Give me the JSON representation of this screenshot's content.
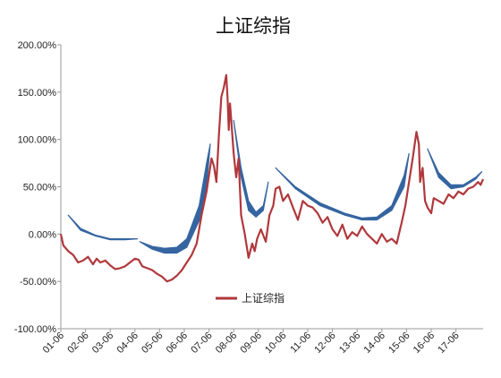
{
  "chart_data": {
    "type": "line",
    "title": "上证综指",
    "xlabel": "",
    "ylabel": "",
    "ylim": [
      -1.0,
      2.0
    ],
    "yticks": [
      "-100.00%",
      "-50.00%",
      "0.00%",
      "50.00%",
      "100.00%",
      "150.00%",
      "200.00%"
    ],
    "ytick_values": [
      -1.0,
      -0.5,
      0.0,
      0.5,
      1.0,
      1.5,
      2.0
    ],
    "xticks": [
      "01-06",
      "02-06",
      "03-06",
      "04-06",
      "05-06",
      "06-06",
      "07-06",
      "08-06",
      "09-06",
      "10-06",
      "11-06",
      "12-06",
      "13-06",
      "14-06",
      "15-06",
      "16-06",
      "17-06"
    ],
    "x_range": [
      2001.0,
      2018.1
    ],
    "legend": {
      "position": "bottom-center",
      "entries": [
        "上证综指"
      ]
    },
    "grid": false,
    "series": [
      {
        "name": "上证综指",
        "color": "#b0383c",
        "x": [
          2001.0,
          2001.1,
          2001.3,
          2001.5,
          2001.7,
          2001.9,
          2002.1,
          2002.3,
          2002.45,
          2002.6,
          2002.8,
          2003.0,
          2003.2,
          2003.4,
          2003.6,
          2003.8,
          2004.0,
          2004.15,
          2004.3,
          2004.5,
          2004.7,
          2004.9,
          2005.1,
          2005.3,
          2005.5,
          2005.7,
          2005.9,
          2006.1,
          2006.3,
          2006.5,
          2006.7,
          2006.9,
          2007.1,
          2007.2,
          2007.3,
          2007.4,
          2007.5,
          2007.6,
          2007.7,
          2007.75,
          2007.8,
          2007.85,
          2007.9,
          2008.0,
          2008.1,
          2008.2,
          2008.3,
          2008.45,
          2008.6,
          2008.75,
          2008.85,
          2008.95,
          2009.1,
          2009.3,
          2009.45,
          2009.6,
          2009.7,
          2009.85,
          2010.0,
          2010.2,
          2010.4,
          2010.6,
          2010.8,
          2011.0,
          2011.2,
          2011.4,
          2011.6,
          2011.8,
          2012.0,
          2012.2,
          2012.4,
          2012.6,
          2012.8,
          2013.0,
          2013.2,
          2013.4,
          2013.6,
          2013.8,
          2014.0,
          2014.2,
          2014.4,
          2014.6,
          2014.8,
          2014.95,
          2015.1,
          2015.25,
          2015.4,
          2015.5,
          2015.55,
          2015.65,
          2015.75,
          2015.85,
          2016.0,
          2016.1,
          2016.3,
          2016.5,
          2016.7,
          2016.9,
          2017.1,
          2017.3,
          2017.5,
          2017.7,
          2017.9,
          2018.0,
          2018.1
        ],
        "values": [
          0.0,
          -0.12,
          -0.18,
          -0.22,
          -0.3,
          -0.28,
          -0.24,
          -0.32,
          -0.26,
          -0.3,
          -0.28,
          -0.33,
          -0.37,
          -0.36,
          -0.34,
          -0.3,
          -0.26,
          -0.27,
          -0.34,
          -0.36,
          -0.38,
          -0.42,
          -0.45,
          -0.5,
          -0.48,
          -0.44,
          -0.38,
          -0.3,
          -0.22,
          -0.1,
          0.2,
          0.45,
          0.8,
          0.72,
          0.55,
          1.05,
          1.45,
          1.55,
          1.68,
          1.45,
          1.1,
          1.38,
          1.2,
          0.85,
          0.6,
          0.8,
          0.2,
          0.0,
          -0.25,
          -0.1,
          -0.18,
          -0.05,
          0.05,
          -0.08,
          0.2,
          0.3,
          0.48,
          0.5,
          0.35,
          0.42,
          0.28,
          0.15,
          0.35,
          0.3,
          0.28,
          0.22,
          0.12,
          0.18,
          0.05,
          -0.02,
          0.1,
          -0.05,
          0.02,
          -0.02,
          0.08,
          0.0,
          -0.05,
          -0.1,
          0.0,
          -0.08,
          -0.05,
          -0.1,
          0.12,
          0.3,
          0.55,
          0.8,
          1.08,
          0.95,
          0.55,
          0.7,
          0.35,
          0.28,
          0.22,
          0.38,
          0.35,
          0.32,
          0.42,
          0.38,
          0.45,
          0.42,
          0.48,
          0.5,
          0.55,
          0.52,
          0.58
        ]
      }
    ],
    "overlays": [
      {
        "color": "#3565a0",
        "x": [
          2001.3,
          2001.8,
          2002.4,
          2003.0,
          2003.6,
          2004.1
        ],
        "upper": [
          0.2,
          0.06,
          -0.01,
          -0.05,
          -0.05,
          -0.05
        ],
        "lower": [
          0.2,
          0.04,
          -0.02,
          -0.06,
          -0.06,
          -0.05
        ]
      },
      {
        "color": "#3565a0",
        "x": [
          2004.2,
          2004.7,
          2005.2,
          2005.7,
          2006.1,
          2006.6,
          2006.9,
          2007.05
        ],
        "upper": [
          -0.08,
          -0.13,
          -0.15,
          -0.14,
          -0.05,
          0.3,
          0.75,
          0.95
        ],
        "lower": [
          -0.08,
          -0.16,
          -0.2,
          -0.2,
          -0.14,
          0.14,
          0.5,
          0.95
        ]
      },
      {
        "color": "#3565a0",
        "x": [
          2008.0,
          2008.3,
          2008.6,
          2008.9,
          2009.2,
          2009.4
        ],
        "upper": [
          1.2,
          0.7,
          0.35,
          0.23,
          0.3,
          0.55
        ],
        "lower": [
          1.2,
          0.6,
          0.25,
          0.18,
          0.25,
          0.55
        ]
      },
      {
        "color": "#3565a0",
        "x": [
          2009.7,
          2010.5,
          2011.5,
          2012.5,
          2013.2,
          2013.8,
          2014.4,
          2014.9,
          2015.1
        ],
        "upper": [
          0.7,
          0.5,
          0.33,
          0.22,
          0.17,
          0.18,
          0.3,
          0.62,
          0.85
        ],
        "lower": [
          0.7,
          0.48,
          0.3,
          0.2,
          0.15,
          0.15,
          0.25,
          0.5,
          0.85
        ]
      },
      {
        "color": "#3565a0",
        "x": [
          2015.85,
          2016.3,
          2016.8,
          2017.3,
          2017.8,
          2018.05
        ],
        "upper": [
          0.9,
          0.65,
          0.52,
          0.52,
          0.6,
          0.66
        ],
        "lower": [
          0.9,
          0.6,
          0.48,
          0.5,
          0.58,
          0.66
        ]
      }
    ]
  }
}
